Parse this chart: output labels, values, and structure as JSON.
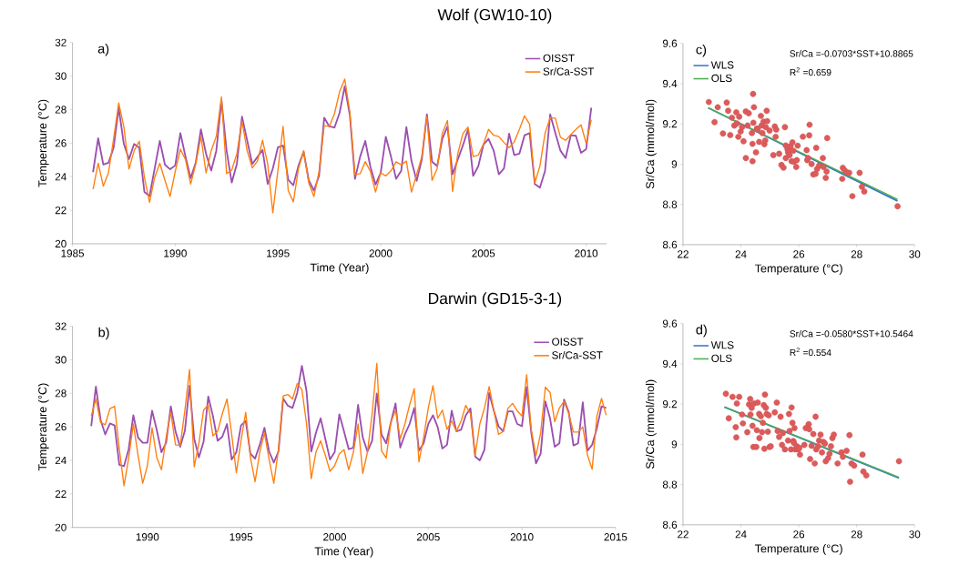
{
  "chart_data": [
    {
      "type": "line",
      "title": "Wolf (GW10-10)",
      "xlabel": "Time (Year)",
      "ylabel": "Temperature (°C)",
      "annotations": [
        "a)"
      ],
      "xlim": [
        1985,
        2011
      ],
      "xticks": [
        1985,
        1990,
        1995,
        2000,
        2005,
        2010
      ],
      "ylim": [
        20,
        32
      ],
      "yticks": [
        20,
        22,
        24,
        26,
        28,
        30,
        32
      ],
      "legend": "top right",
      "x": [
        1986,
        1986.25,
        1986.5,
        1986.75,
        1987,
        1987.25,
        1987.5,
        1987.75,
        1988,
        1988.25,
        1988.5,
        1988.75,
        1989,
        1989.25,
        1989.5,
        1989.75,
        1990,
        1990.25,
        1990.5,
        1990.75,
        1991,
        1991.25,
        1991.5,
        1991.75,
        1992,
        1992.25,
        1992.5,
        1992.75,
        1993,
        1993.25,
        1993.5,
        1993.75,
        1994,
        1994.25,
        1994.5,
        1994.75,
        1995,
        1995.25,
        1995.5,
        1995.75,
        1996,
        1996.25,
        1996.5,
        1996.75,
        1997,
        1997.25,
        1997.5,
        1997.75,
        1998,
        1998.25,
        1998.5,
        1998.75,
        1999,
        1999.25,
        1999.5,
        1999.75,
        2000,
        2000.25,
        2000.5,
        2000.75,
        2001,
        2001.25,
        2001.5,
        2001.75,
        2002,
        2002.25,
        2002.5,
        2002.75,
        2003,
        2003.25,
        2003.5,
        2003.75,
        2004,
        2004.25,
        2004.5,
        2004.75,
        2005,
        2005.25,
        2005.5,
        2005.75,
        2006,
        2006.25,
        2006.5,
        2006.75,
        2007,
        2007.25,
        2007.5,
        2007.75,
        2008,
        2008.25,
        2008.5,
        2008.75,
        2009,
        2009.25,
        2009.5,
        2009.75,
        2010,
        2010.25
      ],
      "series": [
        {
          "name": "OISST",
          "color": "#9b4fb0",
          "values": [
            24.27,
            26.29,
            24.72,
            24.83,
            25.73,
            28.09,
            25.95,
            25.05,
            25.95,
            25.73,
            23.09,
            22.85,
            24.49,
            26.13,
            24.72,
            24.44,
            24.67,
            26.6,
            25.2,
            23.91,
            24.84,
            26.82,
            25.37,
            24.37,
            25.55,
            28.55,
            25.55,
            23.65,
            24.76,
            27.58,
            26.17,
            24.76,
            25.17,
            25.6,
            23.57,
            24.49,
            25.76,
            25.86,
            23.82,
            23.49,
            24.67,
            25.49,
            23.78,
            23.17,
            24.05,
            27.52,
            27.0,
            26.93,
            27.81,
            29.39,
            27.66,
            23.87,
            25.2,
            26.13,
            24.58,
            23.53,
            24.23,
            26.38,
            25.2,
            23.87,
            24.35,
            26.96,
            24.93,
            23.75,
            25.02,
            27.72,
            24.89,
            24.64,
            26.26,
            27.0,
            24.14,
            25.02,
            25.86,
            26.82,
            24.05,
            24.62,
            25.91,
            26.26,
            25.55,
            24.14,
            24.49,
            26.57,
            25.29,
            25.37,
            26.47,
            26.6,
            23.56,
            23.35,
            24.35,
            27.72,
            26.6,
            25.55,
            25.11,
            26.47,
            26.44,
            25.42,
            25.64,
            28.11
          ]
        },
        {
          "name": "Sr/Ca-SST",
          "color": "#ff7f0e",
          "values": [
            23.26,
            24.8,
            23.44,
            24.23,
            26.26,
            28.4,
            26.96,
            24.46,
            25.55,
            26.11,
            23.96,
            22.47,
            23.96,
            24.8,
            23.78,
            22.82,
            24.31,
            25.64,
            25.02,
            23.56,
            24.76,
            26.39,
            24.23,
            25.55,
            26.42,
            28.76,
            24.18,
            24.4,
            25.37,
            27.31,
            25.55,
            24.53,
            24.93,
            26.17,
            24.76,
            21.85,
            24.4,
            27.0,
            23.17,
            22.5,
            24.49,
            25.55,
            23.62,
            22.82,
            24.31,
            27.04,
            27.0,
            27.75,
            29.07,
            29.82,
            27.84,
            24.14,
            24.18,
            24.9,
            24.31,
            23.08,
            24.23,
            24.05,
            24.35,
            24.89,
            24.71,
            24.93,
            23.08,
            24.14,
            25.2,
            27.57,
            23.78,
            24.49,
            26.6,
            27.35,
            23.12,
            25.37,
            26.57,
            26.96,
            25.2,
            25.29,
            25.94,
            26.82,
            26.47,
            26.39,
            26.04,
            25.73,
            26.08,
            26.82,
            27.63,
            27.13,
            23.62,
            24.64,
            26.6,
            27.52,
            27.49,
            26.35,
            26.17,
            26.51,
            26.82,
            27.09,
            25.99,
            27.4
          ]
        }
      ]
    },
    {
      "type": "scatter",
      "xlabel": "Temperature (°C)",
      "ylabel": "Sr/Ca (mmol/mol)",
      "annotations": [
        "c)",
        "Sr/Ca =-0.0703*SST+10.8865",
        "R$^{2}$ =0.659"
      ],
      "xlim": [
        22,
        30
      ],
      "xticks": [
        22,
        24,
        26,
        28,
        30
      ],
      "ylim": [
        8.6,
        9.6
      ],
      "yticks": [
        8.6,
        8.8,
        9,
        9.2,
        9.4,
        9.6
      ],
      "legend": "top left",
      "series": [
        {
          "type": "scatter",
          "color": "#de5a5a",
          "marker": "circle",
          "x": [
            22.89,
            23.09,
            23.2,
            23.38,
            23.51,
            23.56,
            23.63,
            23.69,
            23.77,
            23.84,
            23.86,
            23.91,
            23.94,
            23.99,
            24.04,
            24.09,
            24.17,
            24.17,
            24.23,
            24.27,
            24.38,
            24.4,
            24.4,
            24.43,
            24.45,
            24.42,
            24.52,
            24.55,
            24.58,
            24.63,
            24.69,
            24.71,
            24.74,
            24.78,
            24.81,
            24.84,
            24.86,
            24.89,
            24.91,
            24.99,
            25.12,
            25.17,
            25.2,
            25.22,
            25.32,
            25.4,
            25.47,
            25.52,
            25.55,
            25.55,
            25.61,
            25.63,
            25.68,
            25.71,
            25.75,
            25.78,
            25.81,
            25.83,
            25.91,
            25.93,
            25.96,
            26.14,
            26.27,
            26.29,
            26.32,
            26.36,
            26.37,
            26.44,
            26.5,
            26.58,
            26.6,
            26.63,
            26.7,
            26.83,
            26.85,
            26.93,
            26.96,
            26.98,
            27.5,
            27.52,
            27.59,
            27.69,
            27.74,
            27.85,
            28.1,
            28.18,
            28.26,
            29.41
          ],
          "values": [
            9.309,
            9.209,
            9.283,
            9.152,
            9.306,
            9.265,
            9.145,
            9.231,
            9.192,
            9.258,
            9.202,
            9.136,
            9.236,
            9.162,
            9.184,
            9.114,
            9.03,
            9.262,
            9.192,
            9.253,
            9.155,
            9.015,
            9.101,
            9.206,
            9.283,
            9.349,
            9.059,
            9.177,
            9.172,
            9.111,
            9.24,
            9.192,
            9.155,
            9.211,
            9.099,
            9.118,
            9.184,
            9.265,
            9.214,
            9.167,
            9.045,
            9.187,
            9.136,
            9.172,
            9.052,
            8.996,
            8.983,
            9.184,
            9.093,
            9.03,
            9.074,
            9.059,
            9.045,
            9.089,
            9.015,
            9.108,
            9.067,
            9.012,
            8.986,
            9.02,
            9.092,
            9.137,
            9.07,
            9.02,
            9.03,
            9.143,
            9.196,
            9.001,
            8.949,
            8.952,
            9.081,
            8.976,
            8.993,
            9.03,
            8.986,
            8.932,
            8.964,
            9.13,
            8.927,
            8.982,
            8.968,
            8.957,
            8.957,
            8.841,
            8.957,
            8.888,
            8.864,
            8.791
          ]
        },
        {
          "type": "line",
          "name": "WLS",
          "color": "#3a78c4",
          "x": [
            22.87,
            29.41
          ],
          "values": [
            9.28,
            8.817
          ]
        },
        {
          "type": "line",
          "name": "OLS",
          "color": "#4caf50",
          "x": [
            22.87,
            29.41
          ],
          "values": [
            9.28,
            8.825
          ]
        }
      ]
    },
    {
      "type": "line",
      "title": "Darwin (GD15-3-1)",
      "xlabel": "Time (Year)",
      "ylabel": "Temperature (°C)",
      "annotations": [
        "b)"
      ],
      "xlim": [
        1986,
        2015
      ],
      "xticks": [
        1990,
        1995,
        2000,
        2005,
        2010,
        2015
      ],
      "ylim": [
        20,
        32
      ],
      "yticks": [
        20,
        22,
        24,
        26,
        28,
        30,
        32
      ],
      "legend": "top right",
      "x": [
        1987,
        1987.25,
        1987.5,
        1987.75,
        1988,
        1988.25,
        1988.5,
        1988.75,
        1989,
        1989.25,
        1989.5,
        1989.75,
        1990,
        1990.25,
        1990.5,
        1990.75,
        1991,
        1991.25,
        1991.5,
        1991.75,
        1992,
        1992.25,
        1992.5,
        1992.75,
        1993,
        1993.25,
        1993.5,
        1993.75,
        1994,
        1994.25,
        1994.5,
        1994.75,
        1995,
        1995.25,
        1995.5,
        1995.75,
        1996,
        1996.25,
        1996.5,
        1996.75,
        1997,
        1997.25,
        1997.5,
        1997.75,
        1998,
        1998.25,
        1998.5,
        1998.75,
        1999,
        1999.25,
        1999.5,
        1999.75,
        2000,
        2000.25,
        2000.5,
        2000.75,
        2001,
        2001.25,
        2001.5,
        2001.75,
        2002,
        2002.25,
        2002.5,
        2002.75,
        2003,
        2003.25,
        2003.5,
        2003.75,
        2004,
        2004.25,
        2004.5,
        2004.75,
        2005,
        2005.25,
        2005.5,
        2005.75,
        2006,
        2006.25,
        2006.5,
        2006.75,
        2007,
        2007.25,
        2007.5,
        2007.75,
        2008,
        2008.25,
        2008.5,
        2008.75,
        2009,
        2009.25,
        2009.5,
        2009.75,
        2010,
        2010.25,
        2010.5,
        2010.75,
        2011,
        2011.25,
        2011.5,
        2011.75,
        2012,
        2012.25,
        2012.5,
        2012.75,
        2013,
        2013.25,
        2013.5,
        2013.75,
        2014,
        2014.25,
        2014.5
      ],
      "series": [
        {
          "name": "OISST",
          "color": "#9b4fb0",
          "values": [
            26.04,
            28.4,
            26.42,
            25.55,
            26.2,
            26.08,
            23.74,
            23.65,
            24.67,
            26.69,
            25.37,
            25.05,
            25.05,
            26.96,
            25.82,
            24.49,
            25.05,
            27.22,
            25.73,
            24.81,
            25.76,
            28.46,
            25.29,
            24.18,
            25.11,
            27.81,
            26.64,
            25.17,
            25.41,
            26.17,
            24.05,
            24.49,
            26.08,
            26.35,
            24.4,
            24.11,
            24.93,
            25.94,
            24.53,
            23.87,
            24.53,
            27.69,
            27.26,
            27.13,
            28.02,
            29.64,
            28.11,
            24.53,
            25.64,
            26.51,
            25.29,
            24.05,
            24.49,
            26.75,
            25.73,
            24.67,
            24.76,
            27.31,
            25.37,
            24.53,
            25.17,
            27.99,
            25.55,
            25.02,
            26.26,
            27.4,
            24.76,
            25.55,
            26.17,
            27.13,
            24.58,
            25.02,
            26.17,
            26.69,
            25.99,
            24.71,
            24.93,
            26.96,
            25.73,
            25.82,
            26.69,
            27.1,
            24.23,
            24.0,
            24.64,
            28.02,
            26.96,
            26.03,
            25.73,
            26.92,
            26.92,
            26.17,
            26.04,
            28.37,
            25.64,
            23.82,
            24.4,
            27.52,
            26.51,
            24.81,
            25.02,
            27.63,
            26.87,
            24.89,
            25.02,
            27.46,
            24.58,
            24.93,
            25.91,
            27.22,
            27.13
          ]
        },
        {
          "name": "Sr/Ca-SST",
          "color": "#ff7f0e",
          "values": [
            26.64,
            27.66,
            26.26,
            26.13,
            27.09,
            27.22,
            24.67,
            22.49,
            24.14,
            26.17,
            24.31,
            22.64,
            23.69,
            25.94,
            24.18,
            23.44,
            25.37,
            26.87,
            24.93,
            24.89,
            26.96,
            29.42,
            23.62,
            25.02,
            27.0,
            27.31,
            25.46,
            25.73,
            26.78,
            27.66,
            25.55,
            23.26,
            25.17,
            26.87,
            24.18,
            22.73,
            24.49,
            25.64,
            24.05,
            22.64,
            24.67,
            27.84,
            27.93,
            27.66,
            28.58,
            28.23,
            26.17,
            22.91,
            24.49,
            25.17,
            24.31,
            23.35,
            23.69,
            24.4,
            24.64,
            23.44,
            24.49,
            26.17,
            23.22,
            24.49,
            26.78,
            29.78,
            24.58,
            24.14,
            26.26,
            27.0,
            25.29,
            26.17,
            27.31,
            28.28,
            23.91,
            25.37,
            27.13,
            28.46,
            26.51,
            27.0,
            25.85,
            26.35,
            25.73,
            26.35,
            27.28,
            26.78,
            24.28,
            26.17,
            27.13,
            28.4,
            26.96,
            25.55,
            25.73,
            27.1,
            27.4,
            26.96,
            26.64,
            29.11,
            25.82,
            24.28,
            25.64,
            28.37,
            28.06,
            26.31,
            27.13,
            27.52,
            26.78,
            25.69,
            25.69,
            25.99,
            24.31,
            23.47,
            26.64,
            27.69,
            26.69
          ]
        }
      ]
    },
    {
      "type": "scatter",
      "xlabel": "Temperature (°C)",
      "ylabel": "Sr/Ca (mmol/mol)",
      "annotations": [
        "d)",
        "Sr/Ca =-0.0580*SST+10.5464",
        "R$^{2}$ =0.554"
      ],
      "xlim": [
        22,
        30
      ],
      "xticks": [
        22,
        24,
        26,
        28,
        30
      ],
      "ylim": [
        8.6,
        9.6
      ],
      "yticks": [
        8.6,
        8.8,
        9,
        9.2,
        9.4,
        9.6
      ],
      "legend": "top left",
      "series": [
        {
          "type": "scatter",
          "color": "#de5a5a",
          "marker": "circle",
          "x": [
            23.48,
            23.58,
            23.71,
            23.82,
            23.84,
            23.86,
            23.94,
            24.04,
            24.07,
            24.22,
            24.28,
            24.32,
            24.33,
            24.37,
            24.4,
            24.43,
            24.45,
            24.53,
            24.55,
            24.58,
            24.63,
            24.64,
            24.69,
            24.73,
            24.76,
            24.79,
            24.81,
            24.83,
            24.86,
            24.89,
            24.93,
            24.96,
            24.99,
            25.03,
            25.17,
            25.24,
            25.27,
            25.32,
            25.37,
            25.42,
            25.45,
            25.52,
            25.63,
            25.66,
            25.68,
            25.73,
            25.75,
            25.78,
            25.81,
            25.83,
            25.85,
            25.88,
            25.93,
            25.98,
            26.02,
            26.04,
            26.19,
            26.24,
            26.34,
            26.36,
            26.39,
            26.44,
            26.5,
            26.55,
            26.58,
            26.6,
            26.67,
            26.7,
            26.75,
            26.8,
            26.85,
            26.9,
            26.93,
            27.01,
            27.06,
            27.11,
            27.16,
            27.21,
            27.34,
            27.47,
            27.52,
            27.65,
            27.75,
            27.77,
            27.82,
            27.91,
            28.2,
            28.23,
            28.33,
            29.46
          ],
          "values": [
            9.251,
            9.129,
            9.236,
            9.085,
            9.034,
            9.203,
            9.236,
            9.148,
            9.104,
            9.06,
            9.198,
            9.225,
            9.148,
            9.181,
            9.092,
            8.987,
            9.203,
            8.987,
            9.07,
            9.207,
            9.151,
            9.031,
            9.139,
            9.06,
            9.107,
            9.195,
            8.978,
            9.247,
            9.181,
            9.151,
            9.063,
            9.144,
            8.987,
            8.99,
            9.159,
            9.207,
            9.066,
            9.037,
            9.137,
            8.997,
            9.056,
            8.975,
            9.019,
            9.151,
            9.066,
            8.975,
            9.183,
            9.107,
            9.016,
            9.007,
            9.081,
            8.975,
            8.99,
            8.975,
            8.982,
            8.949,
            8.997,
            9.081,
            9.1,
            9.075,
            8.927,
            8.993,
            9.051,
            8.905,
            9.137,
            8.975,
            8.99,
            9.019,
            9.048,
            8.96,
            9.012,
            9.004,
            8.916,
            8.931,
            8.953,
            8.99,
            9.031,
            9.048,
            8.905,
            8.96,
            8.938,
            8.968,
            9.046,
            8.814,
            8.905,
            8.894,
            8.949,
            8.865,
            8.846,
            8.916
          ]
        },
        {
          "type": "line",
          "name": "WLS",
          "color": "#3a78c4",
          "x": [
            23.43,
            29.46
          ],
          "values": [
            9.185,
            8.832
          ]
        },
        {
          "type": "line",
          "name": "OLS",
          "color": "#4caf50",
          "x": [
            23.43,
            29.46
          ],
          "values": [
            9.185,
            8.836
          ]
        }
      ]
    }
  ]
}
